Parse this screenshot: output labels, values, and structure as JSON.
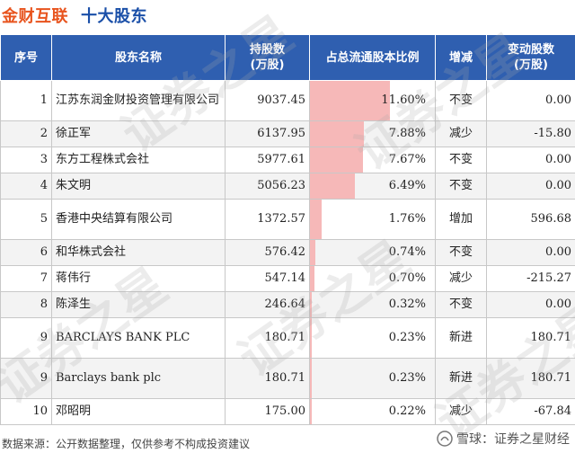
{
  "header": {
    "title": "金财互联",
    "subtitle": "十大股东"
  },
  "columns": {
    "index": "序号",
    "name": "股东名称",
    "shares": "持股数",
    "shares_unit": "(万股)",
    "ratio": "占总流通股本比例",
    "change": "增减",
    "delta": "变动股数",
    "delta_unit": "(万股)"
  },
  "rows": [
    {
      "index": "1",
      "name": "江苏东润金财投资管理有限公司",
      "shares": "9037.45",
      "ratio": "11.60%",
      "ratio_value": 11.6,
      "change": "不变",
      "change_type": "same",
      "delta": "0.00"
    },
    {
      "index": "2",
      "name": "徐正军",
      "shares": "6137.95",
      "ratio": "7.88%",
      "ratio_value": 7.88,
      "change": "减少",
      "change_type": "down",
      "delta": "-15.80"
    },
    {
      "index": "3",
      "name": "东方工程株式会社",
      "shares": "5977.61",
      "ratio": "7.67%",
      "ratio_value": 7.67,
      "change": "不变",
      "change_type": "same",
      "delta": "0.00"
    },
    {
      "index": "4",
      "name": "朱文明",
      "shares": "5056.23",
      "ratio": "6.49%",
      "ratio_value": 6.49,
      "change": "不变",
      "change_type": "same",
      "delta": "0.00"
    },
    {
      "index": "5",
      "name": "香港中央结算有限公司",
      "shares": "1372.57",
      "ratio": "1.76%",
      "ratio_value": 1.76,
      "change": "增加",
      "change_type": "up",
      "delta": "596.68"
    },
    {
      "index": "6",
      "name": "和华株式会社",
      "shares": "576.42",
      "ratio": "0.74%",
      "ratio_value": 0.74,
      "change": "不变",
      "change_type": "same",
      "delta": "0.00"
    },
    {
      "index": "7",
      "name": "蒋伟行",
      "shares": "547.14",
      "ratio": "0.70%",
      "ratio_value": 0.7,
      "change": "减少",
      "change_type": "down",
      "delta": "-215.27"
    },
    {
      "index": "8",
      "name": "陈泽生",
      "shares": "246.64",
      "ratio": "0.32%",
      "ratio_value": 0.32,
      "change": "不变",
      "change_type": "same",
      "delta": "0.00"
    },
    {
      "index": "9",
      "name": "BARCLAYS BANK PLC",
      "shares": "180.71",
      "ratio": "0.23%",
      "ratio_value": 0.23,
      "change": "新进",
      "change_type": "new",
      "delta": "180.71"
    },
    {
      "index": "9",
      "name": "Barclays bank plc",
      "shares": "180.71",
      "ratio": "0.23%",
      "ratio_value": 0.23,
      "change": "新进",
      "change_type": "new",
      "delta": "180.71"
    },
    {
      "index": "10",
      "name": "邓昭明",
      "shares": "175.00",
      "ratio": "0.22%",
      "ratio_value": 0.22,
      "change": "减少",
      "change_type": "down",
      "delta": "-67.84"
    }
  ],
  "watermark": "证券之星",
  "footer": {
    "source": "数据来源：公开数据整理，仅供参考不构成投资建议",
    "brand": "雪球：证券之星财经"
  },
  "colors": {
    "header_bg": "#2f5fb0",
    "title": "#e8541e",
    "subtitle": "#1a4fa8",
    "bar": "#f6b8b8",
    "down": "#1e9c3c",
    "up": "#e02020"
  },
  "icons": {
    "brand": "snowball-icon"
  }
}
